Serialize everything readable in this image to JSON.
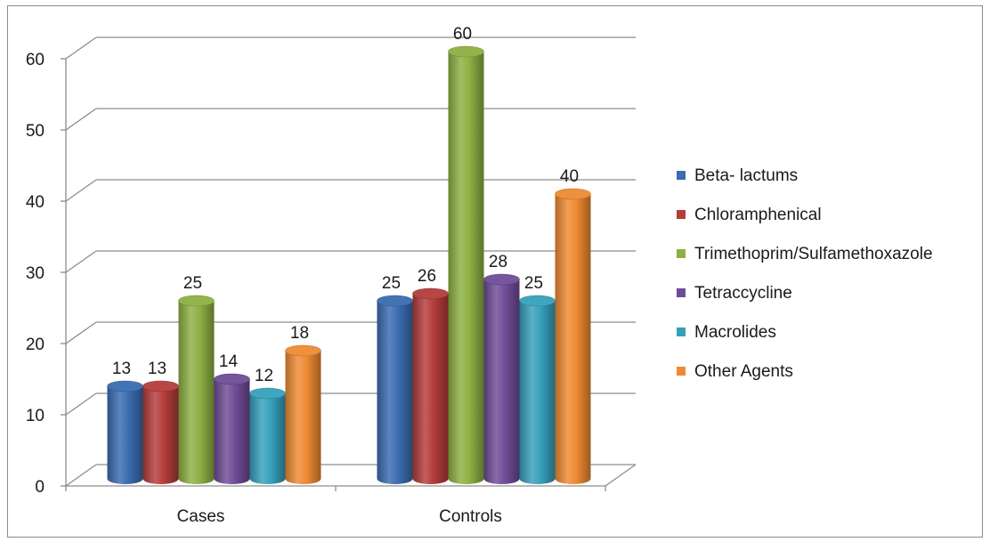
{
  "colors": {
    "background": "#ffffff",
    "frame": "#8c8c8c",
    "gridline": "#8c8c8c",
    "text": "#1a1a1a"
  },
  "chart_data": {
    "type": "bar",
    "style": "3d-cylinder",
    "categories": [
      "Cases",
      "Controls"
    ],
    "series": [
      {
        "name": "Beta- lactums",
        "color": "#3a6cb0",
        "values": [
          13,
          25
        ]
      },
      {
        "name": "Chloramphenical",
        "color": "#b33c3a",
        "values": [
          13,
          26
        ]
      },
      {
        "name": "Trimethoprim/Sulfamethoxazole",
        "color": "#8db043",
        "values": [
          25,
          60
        ]
      },
      {
        "name": "Tetraccycline",
        "color": "#6e4c96",
        "values": [
          14,
          28
        ]
      },
      {
        "name": "Macrolides",
        "color": "#36a0bb",
        "values": [
          12,
          25
        ]
      },
      {
        "name": "Other Agents",
        "color": "#ee8a33",
        "values": [
          18,
          40
        ]
      }
    ],
    "data_labels": true,
    "ylim": [
      0,
      60
    ],
    "yticks": [
      0,
      10,
      20,
      30,
      40,
      50,
      60
    ],
    "grid": true,
    "legend_position": "right",
    "title": "",
    "xlabel": "",
    "ylabel": ""
  }
}
